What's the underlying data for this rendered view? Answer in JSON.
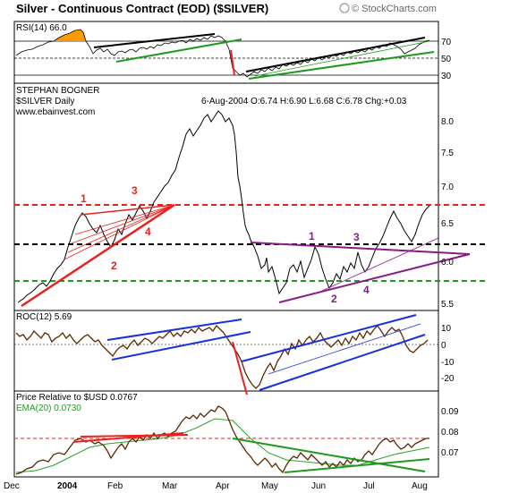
{
  "header": {
    "title": "Silver - Continuous Contract (EOD) ($SILVER)",
    "copyright": "© StockCharts.com"
  },
  "chart_data": {
    "type": "line",
    "panels": {
      "rsi": {
        "label": "RSI(14) 66.0",
        "ticks": [
          "70",
          "50",
          "30"
        ],
        "ylim": [
          20,
          80
        ]
      },
      "price": {
        "author": "STEPHAN BOGNER",
        "symbol": "$SILVER Daily",
        "website": "www.ebainvest.com",
        "quote": "6-Aug-2004 O:6.74 H:6.90 L:6.68 C:6.78 Chg:+0.03",
        "ticks": [
          "8.0",
          "7.5",
          "7.0",
          "6.5",
          "6.0",
          "5.5"
        ],
        "ylim": [
          5.45,
          8.25
        ],
        "annotations": [
          "1",
          "2",
          "3",
          "4",
          "1",
          "2",
          "3",
          "4"
        ]
      },
      "roc": {
        "label": "ROC(12) 5.69",
        "ticks": [
          "10",
          "0",
          "-10",
          "-20"
        ],
        "ylim": [
          -28,
          18
        ]
      },
      "relative": {
        "label": "Price Relative to $USD 0.0767",
        "ema_label": "EMA(20) 0.0730",
        "ticks": [
          "0.09",
          "0.08",
          "0.07"
        ],
        "ylim": [
          0.061,
          0.095
        ]
      }
    },
    "x_labels": [
      "Dec",
      "2004",
      "Feb",
      "Mar",
      "Apr",
      "May",
      "Jun",
      "Jul",
      "Aug"
    ],
    "price_series": {
      "x": [
        "Dec",
        "2004",
        "Feb",
        "Mar",
        "Apr",
        "May",
        "Jun",
        "Jul",
        "Aug"
      ],
      "y": [
        5.45,
        5.95,
        6.45,
        6.65,
        8.15,
        5.85,
        5.7,
        6.6,
        6.78
      ]
    },
    "levels": {
      "red_dashed": 6.72,
      "black_dashed": 6.19,
      "green_dashed": 5.75
    }
  },
  "colors": {
    "price": "#000000",
    "relative": "#5a2a00",
    "ema": "#2ca02c",
    "red": "#e8221f",
    "green": "#1f9a1f",
    "blue": "#1630e0",
    "purple": "#8a1a8a",
    "black": "#000000",
    "orange": "#ff9900"
  }
}
